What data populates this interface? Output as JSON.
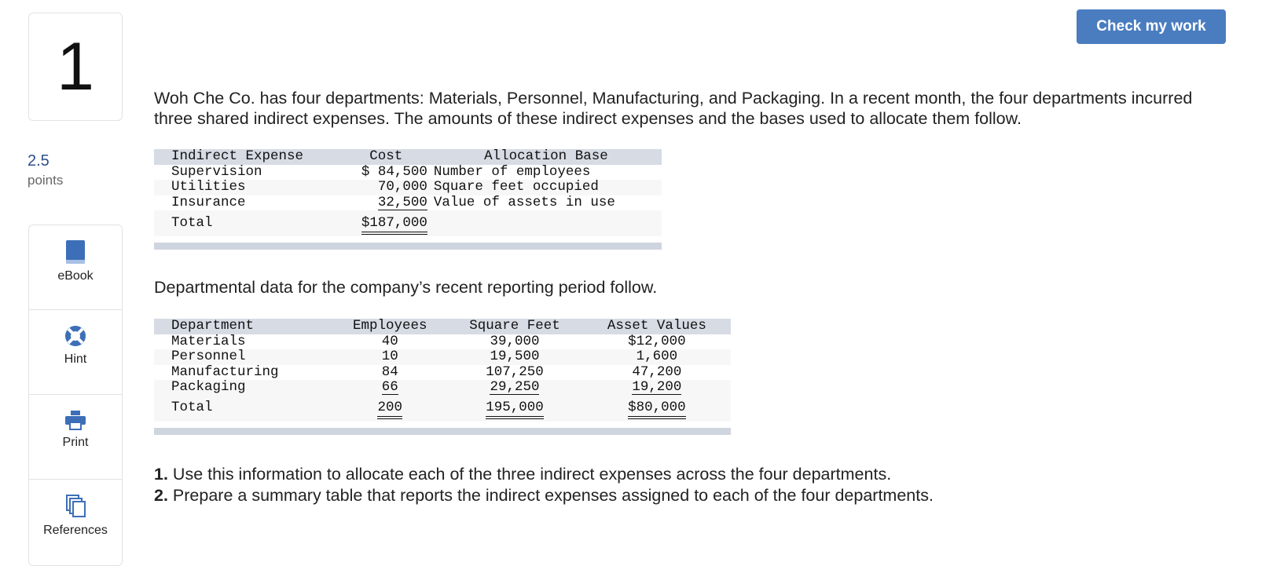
{
  "question": {
    "number": "1",
    "points": "2.5",
    "points_label": "points"
  },
  "tools": [
    "eBook",
    "Hint",
    "Print",
    "References"
  ],
  "button": "Check my work",
  "intro": "Woh Che Co. has four departments: Materials, Personnel, Manufacturing, and Packaging. In a recent month, the four departments incurred three shared indirect expenses. The amounts of these indirect expenses and the bases used to allocate them follow.",
  "table1": {
    "headers": [
      "Indirect Expense",
      "Cost",
      "Allocation Base"
    ],
    "rows": [
      [
        "Supervision",
        "$ 84,500",
        "Number of employees"
      ],
      [
        "Utilities",
        "70,000",
        "Square feet occupied"
      ],
      [
        "Insurance",
        "32,500",
        "Value of assets in use"
      ]
    ],
    "total": [
      "Total",
      "$187,000"
    ]
  },
  "paragraph2": "Departmental data for the company’s recent reporting period follow.",
  "table2": {
    "headers": [
      "Department",
      "Employees",
      "Square Feet",
      "Asset Values"
    ],
    "rows": [
      [
        "Materials",
        "40",
        "39,000",
        "$12,000"
      ],
      [
        "Personnel",
        "10",
        "19,500",
        "1,600"
      ],
      [
        "Manufacturing",
        "84",
        "107,250",
        "47,200"
      ],
      [
        "Packaging",
        "66",
        "29,250",
        "19,200"
      ]
    ],
    "total": [
      "Total",
      "200",
      "195,000",
      "$80,000"
    ]
  },
  "instructions": [
    {
      "num": "1.",
      "text": "Use this information to allocate each of the three indirect expenses across the four departments."
    },
    {
      "num": "2.",
      "text": "Prepare a summary table that reports the indirect expenses assigned to each of the four departments."
    }
  ]
}
